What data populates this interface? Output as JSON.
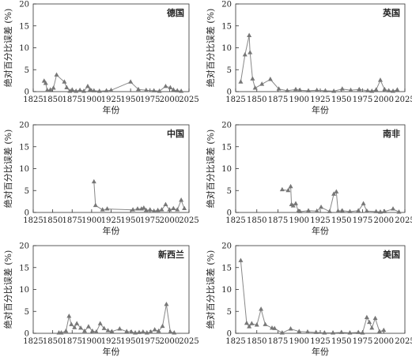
{
  "figure": {
    "xlabel": "年份",
    "ylabel": "绝对百分比误差 (%)"
  },
  "chart_data": [
    {
      "type": "line",
      "title": "德国",
      "xlabel": "年份",
      "ylabel": "绝对百分比误差 (%)",
      "xlim": [
        1825,
        2025
      ],
      "ylim": [
        0,
        20
      ],
      "xticks": [
        1825,
        1850,
        1875,
        1900,
        1925,
        1950,
        1975,
        2000,
        2025
      ],
      "yticks": [
        0,
        5,
        10,
        15,
        20
      ],
      "marker": "triangle",
      "grid": false,
      "x": [
        1839,
        1841,
        1843,
        1847,
        1851,
        1855,
        1865,
        1868,
        1872,
        1875,
        1880,
        1885,
        1890,
        1895,
        1898,
        1903,
        1910,
        1919,
        1925,
        1950,
        1960,
        1970,
        1980,
        1987,
        1995,
        2001,
        2005,
        2010,
        2015
      ],
      "y": [
        2.4,
        1.9,
        0.3,
        0.4,
        0.8,
        3.8,
        2.2,
        0.9,
        0.1,
        0.4,
        0.1,
        0.3,
        0.1,
        1.2,
        0.4,
        0.2,
        0.1,
        0.2,
        0.3,
        2.2,
        0.5,
        0.3,
        0.2,
        0.1,
        1.2,
        0.9,
        0.4,
        0.2,
        0.1
      ]
    },
    {
      "type": "line",
      "title": "英国",
      "xlabel": "年份",
      "ylabel": "绝对百分比误差 (%)",
      "xlim": [
        1825,
        2025
      ],
      "ylim": [
        0,
        20
      ],
      "xticks": [
        1825,
        1850,
        1875,
        1900,
        1925,
        1950,
        1975,
        2000,
        2025
      ],
      "yticks": [
        0,
        5,
        10,
        15,
        20
      ],
      "marker": "triangle",
      "grid": false,
      "x": [
        1831,
        1836,
        1841,
        1842,
        1845,
        1848,
        1856,
        1866,
        1876,
        1886,
        1896,
        1901,
        1911,
        1921,
        1931,
        1941,
        1951,
        1961,
        1971,
        1981,
        1986,
        1991,
        1996,
        2001,
        2006,
        2011,
        2016
      ],
      "y": [
        2.2,
        8.4,
        12.8,
        8.9,
        2.9,
        0.8,
        1.7,
        2.8,
        0.6,
        0.2,
        0.5,
        0.3,
        0.2,
        0.3,
        0.2,
        0.1,
        0.6,
        0.3,
        0.5,
        0.2,
        0.1,
        0.4,
        2.6,
        0.5,
        0.2,
        0.1,
        0.4
      ]
    },
    {
      "type": "line",
      "title": "中国",
      "xlabel": "年份",
      "ylabel": "绝对百分比误差 (%)",
      "xlim": [
        1825,
        2025
      ],
      "ylim": [
        0,
        20
      ],
      "xticks": [
        1825,
        1850,
        1875,
        1900,
        1925,
        1950,
        1975,
        2000,
        2025
      ],
      "yticks": [
        0,
        5,
        10,
        15,
        20
      ],
      "marker": "triangle",
      "grid": false,
      "x": [
        1903,
        1905,
        1914,
        1920,
        1953,
        1959,
        1964,
        1967,
        1970,
        1975,
        1980,
        1985,
        1990,
        1995,
        2000,
        2005,
        2010,
        2015,
        2019
      ],
      "y": [
        7.0,
        1.6,
        0.6,
        0.8,
        0.6,
        0.8,
        0.8,
        1.0,
        0.5,
        0.6,
        0.3,
        0.5,
        0.6,
        1.8,
        0.6,
        0.9,
        0.6,
        2.8,
        0.9
      ]
    },
    {
      "type": "line",
      "title": "南非",
      "xlabel": "年份",
      "ylabel": "绝对百分比误差 (%)",
      "xlim": [
        1825,
        2025
      ],
      "ylim": [
        0,
        20
      ],
      "xticks": [
        1825,
        1850,
        1875,
        1900,
        1925,
        1950,
        1975,
        2000,
        2025
      ],
      "yticks": [
        0,
        5,
        10,
        15,
        20
      ],
      "marker": "triangle",
      "grid": false,
      "x": [
        1880,
        1887,
        1890,
        1891,
        1893,
        1896,
        1899,
        1901,
        1911,
        1921,
        1926,
        1936,
        1941,
        1944,
        1946,
        1951,
        1960,
        1970,
        1976,
        1980,
        1991,
        1996,
        2001,
        2011,
        2018
      ],
      "y": [
        5.2,
        5.0,
        5.9,
        1.8,
        1.5,
        2.0,
        0.3,
        0.2,
        0.4,
        0.3,
        1.2,
        0.2,
        4.2,
        4.7,
        0.3,
        0.4,
        0.2,
        0.4,
        2.0,
        0.3,
        0.2,
        0.1,
        0.2,
        0.8,
        0.1
      ]
    },
    {
      "type": "line",
      "title": "新西兰",
      "xlabel": "年份",
      "ylabel": "绝对百分比误差 (%)",
      "xlim": [
        1825,
        2025
      ],
      "ylim": [
        0,
        20
      ],
      "xticks": [
        1825,
        1850,
        1875,
        1900,
        1925,
        1950,
        1975,
        2000,
        2025
      ],
      "yticks": [
        0,
        5,
        10,
        15,
        20
      ],
      "marker": "triangle",
      "grid": false,
      "x": [
        1858,
        1861,
        1867,
        1871,
        1874,
        1878,
        1881,
        1886,
        1891,
        1896,
        1901,
        1906,
        1911,
        1916,
        1921,
        1926,
        1936,
        1945,
        1951,
        1956,
        1961,
        1966,
        1971,
        1976,
        1981,
        1986,
        1991,
        1996,
        2001,
        2006
      ],
      "y": [
        0.1,
        0.1,
        0.5,
        3.9,
        2.0,
        1.3,
        2.2,
        1.2,
        0.5,
        1.5,
        0.5,
        0.3,
        2.2,
        1.1,
        0.6,
        0.4,
        1.0,
        0.4,
        0.3,
        0.1,
        0.2,
        0.3,
        0.1,
        0.3,
        0.8,
        0.5,
        1.6,
        6.6,
        0.3,
        0.1
      ]
    },
    {
      "type": "line",
      "title": "美国",
      "xlabel": "年份",
      "ylabel": "绝对百分比误差 (%)",
      "xlim": [
        1825,
        2025
      ],
      "ylim": [
        0,
        20
      ],
      "xticks": [
        1825,
        1850,
        1875,
        1900,
        1925,
        1950,
        1975,
        2000,
        2025
      ],
      "yticks": [
        0,
        5,
        10,
        15,
        20
      ],
      "marker": "triangle",
      "grid": false,
      "x": [
        1831,
        1838,
        1841,
        1844,
        1850,
        1855,
        1860,
        1868,
        1871,
        1880,
        1890,
        1900,
        1910,
        1920,
        1930,
        1940,
        1950,
        1960,
        1970,
        1975,
        1980,
        1983,
        1986,
        1990,
        1995,
        2000
      ],
      "y": [
        16.6,
        2.3,
        1.5,
        2.2,
        1.9,
        5.5,
        2.0,
        1.2,
        1.1,
        0.1,
        1.0,
        0.4,
        0.3,
        0.2,
        0.1,
        0.1,
        0.2,
        0.1,
        0.2,
        0.1,
        3.6,
        2.5,
        1.2,
        3.4,
        0.4,
        0.7
      ]
    }
  ]
}
